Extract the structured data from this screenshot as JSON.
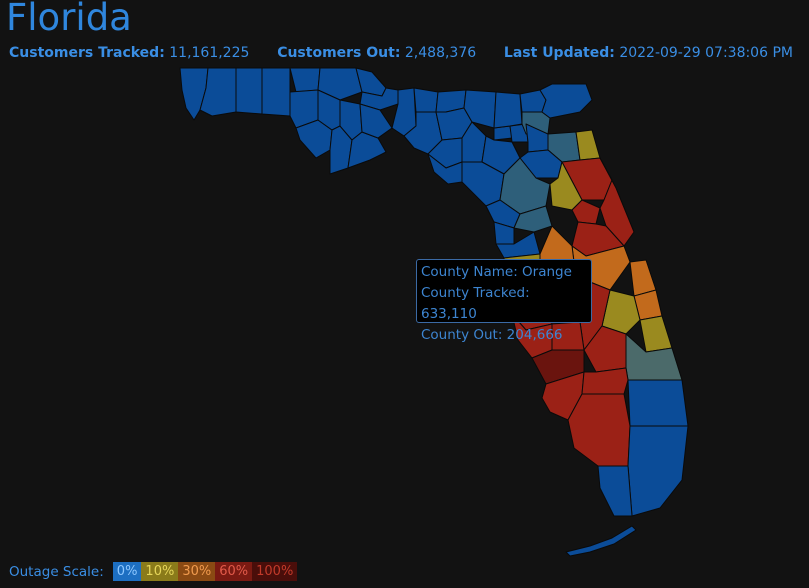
{
  "title": "Florida",
  "stats": {
    "tracked_label": "Customers Tracked:",
    "tracked_value": "11,161,225",
    "out_label": "Customers Out:",
    "out_value": "2,488,376",
    "updated_label": "Last Updated:",
    "updated_value": "2022-09-29 07:38:06 PM"
  },
  "tooltip": {
    "line1": "County Name: Orange",
    "line2": "County Tracked: 633,110",
    "line3": "County Out: 204,666"
  },
  "scale": {
    "label": "Outage Scale:",
    "steps": [
      {
        "text": "0%",
        "bg": "#1d6fc2",
        "fg": "#8ec8ff"
      },
      {
        "text": "10%",
        "bg": "#8a7b1a",
        "fg": "#e6d65a"
      },
      {
        "text": "30%",
        "bg": "#8a4a13",
        "fg": "#f09b4e"
      },
      {
        "text": "60%",
        "bg": "#7a1a12",
        "fg": "#e15a4a"
      },
      {
        "text": "100%",
        "bg": "#4a0e0a",
        "fg": "#c23a2a"
      }
    ]
  },
  "colors": {
    "none": "#0b4c98",
    "teal": "#2e5f7a",
    "slate": "#4b6a6a",
    "yellow": "#9a8a1f",
    "orange": "#c26a1c",
    "red": "#9b2116",
    "darkred": "#6a140e",
    "border": "#0a0a0a"
  }
}
